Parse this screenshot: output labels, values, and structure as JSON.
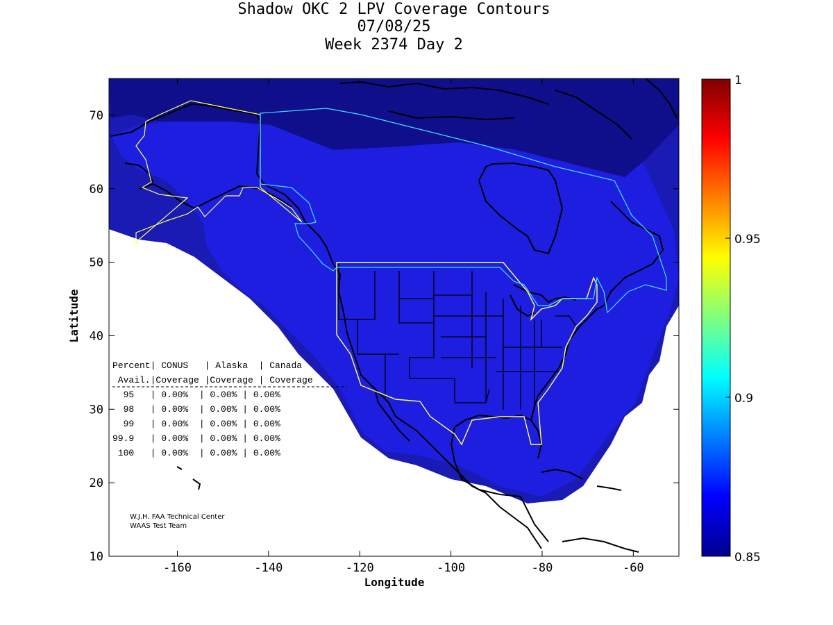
{
  "title": {
    "line1": "Shadow OKC 2 LPV Coverage Contours",
    "line2": "07/08/25",
    "line3": "Week 2374 Day 2"
  },
  "axes": {
    "xlabel": "Longitude",
    "ylabel": "Latitude",
    "xlim": [
      -175,
      -50
    ],
    "ylim": [
      10,
      75
    ],
    "xticks": [
      "-160",
      "-140",
      "-120",
      "-100",
      "-80",
      "-60"
    ],
    "yticks": [
      "10",
      "20",
      "30",
      "40",
      "50",
      "60",
      "70"
    ]
  },
  "colorbar": {
    "range": [
      0.85,
      1
    ],
    "ticks": [
      "0.85",
      "0.9",
      "0.95",
      "1"
    ]
  },
  "table": {
    "header1": "Percent| CONUS   | Alaska  | Canada",
    "header2": " Avail.|Coverage |Coverage | Coverage",
    "rows": [
      "  95   | 0.00%  | 0.00% | 0.00%",
      "  98   | 0.00%  | 0.00% | 0.00%",
      "  99   | 0.00%  | 0.00% | 0.00%",
      "99.9   | 0.00%  | 0.00% | 0.00%",
      " 100   | 0.00%  | 0.00% | 0.00%"
    ]
  },
  "credits": {
    "line1": "W.J.H. FAA Technical Center",
    "line2": "WAAS Test Team"
  },
  "colors": {
    "outer_band": "#1a1ab4",
    "inner_region": "#1e1ee0",
    "far_north": "#0f0f8c",
    "coast": "#000000",
    "service_conus": "#ffff66",
    "service_canada": "#40e0ff"
  }
}
